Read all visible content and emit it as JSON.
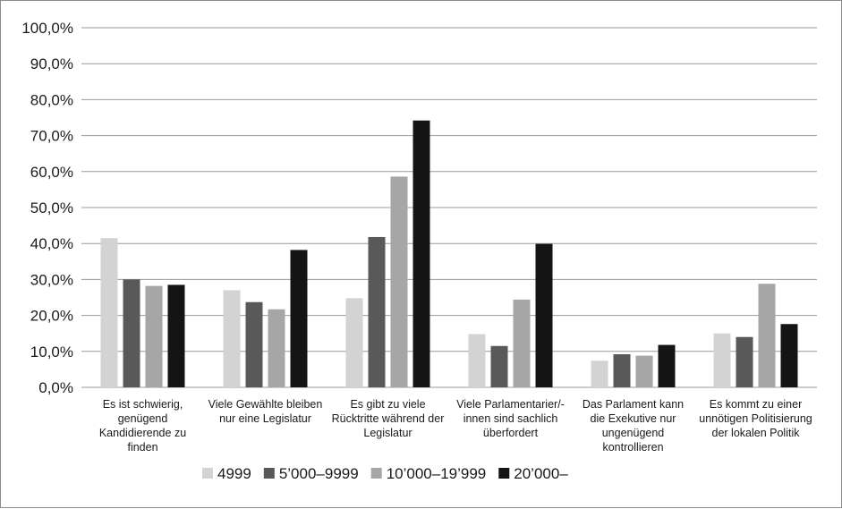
{
  "chart_data": {
    "type": "bar",
    "title": "",
    "xlabel": "",
    "ylabel": "",
    "ylim": [
      0,
      100
    ],
    "yticks": [
      "0,0%",
      "10,0%",
      "20,0%",
      "30,0%",
      "40,0%",
      "50,0%",
      "60,0%",
      "70,0%",
      "80,0%",
      "90,0%",
      "100,0%"
    ],
    "grid": true,
    "legend_position": "bottom",
    "categories": [
      [
        "Es ist schwierig,",
        "genügend",
        "Kandidierende zu",
        "finden"
      ],
      [
        "Viele Gewählte bleiben",
        "nur eine Legislatur"
      ],
      [
        "Es gibt zu viele",
        "Rücktritte während der",
        "Legislatur"
      ],
      [
        "Viele Parlamentarier/-",
        "innen sind sachlich",
        "überfordert"
      ],
      [
        "Das Parlament kann",
        "die Exekutive nur",
        "ungenügend",
        "kontrollieren"
      ],
      [
        "Es kommt zu einer",
        "unnötigen Politisierung",
        "der lokalen Politik"
      ]
    ],
    "series": [
      {
        "name": "4999",
        "color": "#d3d3d3",
        "values": [
          41.5,
          27.0,
          24.8,
          14.8,
          7.4,
          15.0
        ]
      },
      {
        "name": "5’000–9999",
        "color": "#595959",
        "values": [
          30.0,
          23.7,
          41.8,
          11.5,
          9.2,
          14.0
        ]
      },
      {
        "name": "10’000–19’999",
        "color": "#a6a6a6",
        "values": [
          28.2,
          21.7,
          58.6,
          24.4,
          8.8,
          28.8
        ]
      },
      {
        "name": "20’000–",
        "color": "#141414",
        "values": [
          28.5,
          38.2,
          74.2,
          39.9,
          11.8,
          17.6
        ]
      }
    ]
  }
}
